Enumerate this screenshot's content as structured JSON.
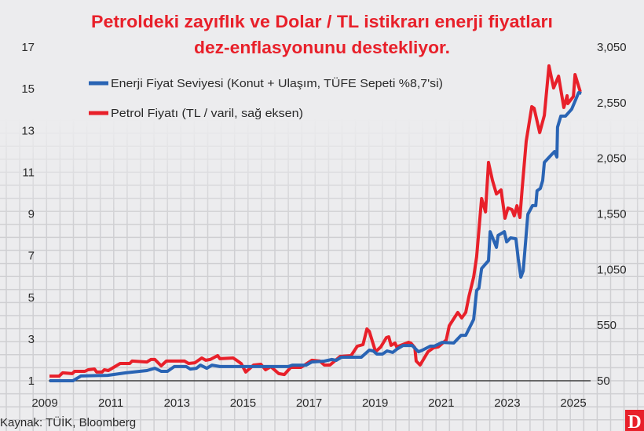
{
  "chart_data": {
    "type": "line",
    "title": "Petroldeki zayıflık ve Dolar / TL istikrarı enerji fiyatları",
    "subtitle": "dez-enflasyonunu destekliyor.",
    "source": "Kaynak: TÜİK, Bloomberg",
    "logo_text": "D",
    "grid": true,
    "legend_position": "top-left",
    "x_ticks": [
      "2009",
      "2011",
      "2013",
      "2015",
      "2017",
      "2019",
      "2021",
      "2023",
      "2025"
    ],
    "x_range": [
      2009,
      2025
    ],
    "y_left": {
      "range": [
        1,
        17
      ],
      "ticks": [
        "1",
        "3",
        "5",
        "7",
        "9",
        "11",
        "13",
        "15",
        "17"
      ]
    },
    "y_right": {
      "range": [
        50,
        3050
      ],
      "ticks": [
        "50",
        "550",
        "1,050",
        "1,550",
        "2,050",
        "2,550",
        "3,050"
      ]
    },
    "colors": {
      "energy": "#2a64b4",
      "oil": "#e8202a",
      "title": "#e8202a",
      "background": "#ececee"
    },
    "series": [
      {
        "name": "Enerji Fiyat Seviyesi (Konut + Ulaşım, TÜFE Sepeti %8,7'si)",
        "axis": "left",
        "color": "#2a64b4",
        "points": [
          [
            2009.0,
            1.0
          ],
          [
            2009.71,
            1.0
          ],
          [
            2009.95,
            1.23
          ],
          [
            2010.76,
            1.26
          ],
          [
            2011.31,
            1.38
          ],
          [
            2011.95,
            1.49
          ],
          [
            2012.19,
            1.6
          ],
          [
            2012.38,
            1.45
          ],
          [
            2012.57,
            1.45
          ],
          [
            2012.78,
            1.68
          ],
          [
            2013.14,
            1.68
          ],
          [
            2013.26,
            1.56
          ],
          [
            2013.45,
            1.6
          ],
          [
            2013.57,
            1.75
          ],
          [
            2013.76,
            1.6
          ],
          [
            2013.92,
            1.75
          ],
          [
            2014.16,
            1.68
          ],
          [
            2014.87,
            1.68
          ],
          [
            2016.23,
            1.68
          ],
          [
            2016.35,
            1.75
          ],
          [
            2016.77,
            1.75
          ],
          [
            2016.94,
            1.9
          ],
          [
            2017.32,
            1.94
          ],
          [
            2017.54,
            2.02
          ],
          [
            2017.68,
            1.98
          ],
          [
            2017.84,
            2.13
          ],
          [
            2018.44,
            2.13
          ],
          [
            2018.68,
            2.47
          ],
          [
            2018.8,
            2.43
          ],
          [
            2018.91,
            2.28
          ],
          [
            2019.08,
            2.28
          ],
          [
            2019.22,
            2.43
          ],
          [
            2019.39,
            2.36
          ],
          [
            2019.51,
            2.51
          ],
          [
            2019.7,
            2.69
          ],
          [
            2019.98,
            2.69
          ],
          [
            2020.17,
            2.39
          ],
          [
            2020.29,
            2.47
          ],
          [
            2020.53,
            2.66
          ],
          [
            2020.65,
            2.66
          ],
          [
            2020.89,
            2.84
          ],
          [
            2021.24,
            2.81
          ],
          [
            2021.46,
            3.18
          ],
          [
            2021.6,
            3.18
          ],
          [
            2021.84,
            3.94
          ],
          [
            2021.93,
            5.33
          ],
          [
            2022.0,
            5.44
          ],
          [
            2022.08,
            6.38
          ],
          [
            2022.29,
            6.76
          ],
          [
            2022.34,
            8.15
          ],
          [
            2022.53,
            7.4
          ],
          [
            2022.58,
            7.97
          ],
          [
            2022.77,
            8.15
          ],
          [
            2022.84,
            7.66
          ],
          [
            2022.96,
            7.85
          ],
          [
            2023.12,
            7.81
          ],
          [
            2023.19,
            6.84
          ],
          [
            2023.27,
            5.97
          ],
          [
            2023.34,
            6.27
          ],
          [
            2023.48,
            8.98
          ],
          [
            2023.62,
            9.4
          ],
          [
            2023.72,
            9.4
          ],
          [
            2023.76,
            10.11
          ],
          [
            2023.86,
            10.22
          ],
          [
            2023.93,
            10.6
          ],
          [
            2023.98,
            11.47
          ],
          [
            2024.22,
            11.88
          ],
          [
            2024.29,
            11.99
          ],
          [
            2024.36,
            11.73
          ],
          [
            2024.38,
            13.16
          ],
          [
            2024.48,
            13.69
          ],
          [
            2024.62,
            13.69
          ],
          [
            2024.81,
            14.03
          ],
          [
            2025.02,
            14.82
          ],
          [
            2025.1,
            14.78
          ]
        ]
      },
      {
        "name": "Petrol Fiyatı (TL / varil, sağ eksen)",
        "axis": "right",
        "color": "#e8202a",
        "points": [
          [
            2009.0,
            92
          ],
          [
            2009.29,
            92
          ],
          [
            2009.4,
            121
          ],
          [
            2009.69,
            114
          ],
          [
            2009.76,
            135
          ],
          [
            2010.07,
            135
          ],
          [
            2010.17,
            149
          ],
          [
            2010.36,
            156
          ],
          [
            2010.43,
            128
          ],
          [
            2010.59,
            128
          ],
          [
            2010.66,
            149
          ],
          [
            2010.78,
            142
          ],
          [
            2011.14,
            205
          ],
          [
            2011.43,
            205
          ],
          [
            2011.5,
            227
          ],
          [
            2011.95,
            219
          ],
          [
            2012.07,
            241
          ],
          [
            2012.19,
            241
          ],
          [
            2012.38,
            184
          ],
          [
            2012.54,
            227
          ],
          [
            2013.09,
            227
          ],
          [
            2013.21,
            205
          ],
          [
            2013.4,
            212
          ],
          [
            2013.61,
            255
          ],
          [
            2013.73,
            234
          ],
          [
            2013.87,
            241
          ],
          [
            2014.09,
            276
          ],
          [
            2014.16,
            248
          ],
          [
            2014.56,
            255
          ],
          [
            2014.63,
            241
          ],
          [
            2014.8,
            205
          ],
          [
            2014.94,
            128
          ],
          [
            2015.18,
            191
          ],
          [
            2015.4,
            198
          ],
          [
            2015.54,
            149
          ],
          [
            2015.7,
            177
          ],
          [
            2015.94,
            114
          ],
          [
            2016.11,
            106
          ],
          [
            2016.3,
            170
          ],
          [
            2016.61,
            170
          ],
          [
            2016.94,
            234
          ],
          [
            2017.18,
            227
          ],
          [
            2017.32,
            191
          ],
          [
            2017.49,
            191
          ],
          [
            2017.8,
            269
          ],
          [
            2018.13,
            276
          ],
          [
            2018.32,
            361
          ],
          [
            2018.49,
            375
          ],
          [
            2018.61,
            516
          ],
          [
            2018.68,
            495
          ],
          [
            2018.87,
            311
          ],
          [
            2019.03,
            354
          ],
          [
            2019.2,
            438
          ],
          [
            2019.27,
            445
          ],
          [
            2019.34,
            368
          ],
          [
            2019.46,
            389
          ],
          [
            2019.51,
            354
          ],
          [
            2019.87,
            396
          ],
          [
            2019.94,
            389
          ],
          [
            2020.06,
            347
          ],
          [
            2020.1,
            227
          ],
          [
            2020.22,
            191
          ],
          [
            2020.46,
            311
          ],
          [
            2020.63,
            347
          ],
          [
            2020.77,
            354
          ],
          [
            2021.01,
            417
          ],
          [
            2021.1,
            544
          ],
          [
            2021.36,
            664
          ],
          [
            2021.48,
            615
          ],
          [
            2021.6,
            664
          ],
          [
            2021.7,
            812
          ],
          [
            2021.84,
            982
          ],
          [
            2021.93,
            1165
          ],
          [
            2022.08,
            1688
          ],
          [
            2022.2,
            1568
          ],
          [
            2022.29,
            2013
          ],
          [
            2022.41,
            1850
          ],
          [
            2022.53,
            1730
          ],
          [
            2022.67,
            1766
          ],
          [
            2022.79,
            1511
          ],
          [
            2022.88,
            1603
          ],
          [
            2023.0,
            1589
          ],
          [
            2023.07,
            1533
          ],
          [
            2023.15,
            1624
          ],
          [
            2023.24,
            1518
          ],
          [
            2023.31,
            1780
          ],
          [
            2023.43,
            2203
          ],
          [
            2023.6,
            2514
          ],
          [
            2023.67,
            2500
          ],
          [
            2023.84,
            2281
          ],
          [
            2023.98,
            2436
          ],
          [
            2024.12,
            2881
          ],
          [
            2024.26,
            2683
          ],
          [
            2024.41,
            2789
          ],
          [
            2024.57,
            2507
          ],
          [
            2024.67,
            2613
          ],
          [
            2024.69,
            2542
          ],
          [
            2024.86,
            2606
          ],
          [
            2024.91,
            2803
          ],
          [
            2025.07,
            2648
          ]
        ]
      }
    ]
  }
}
